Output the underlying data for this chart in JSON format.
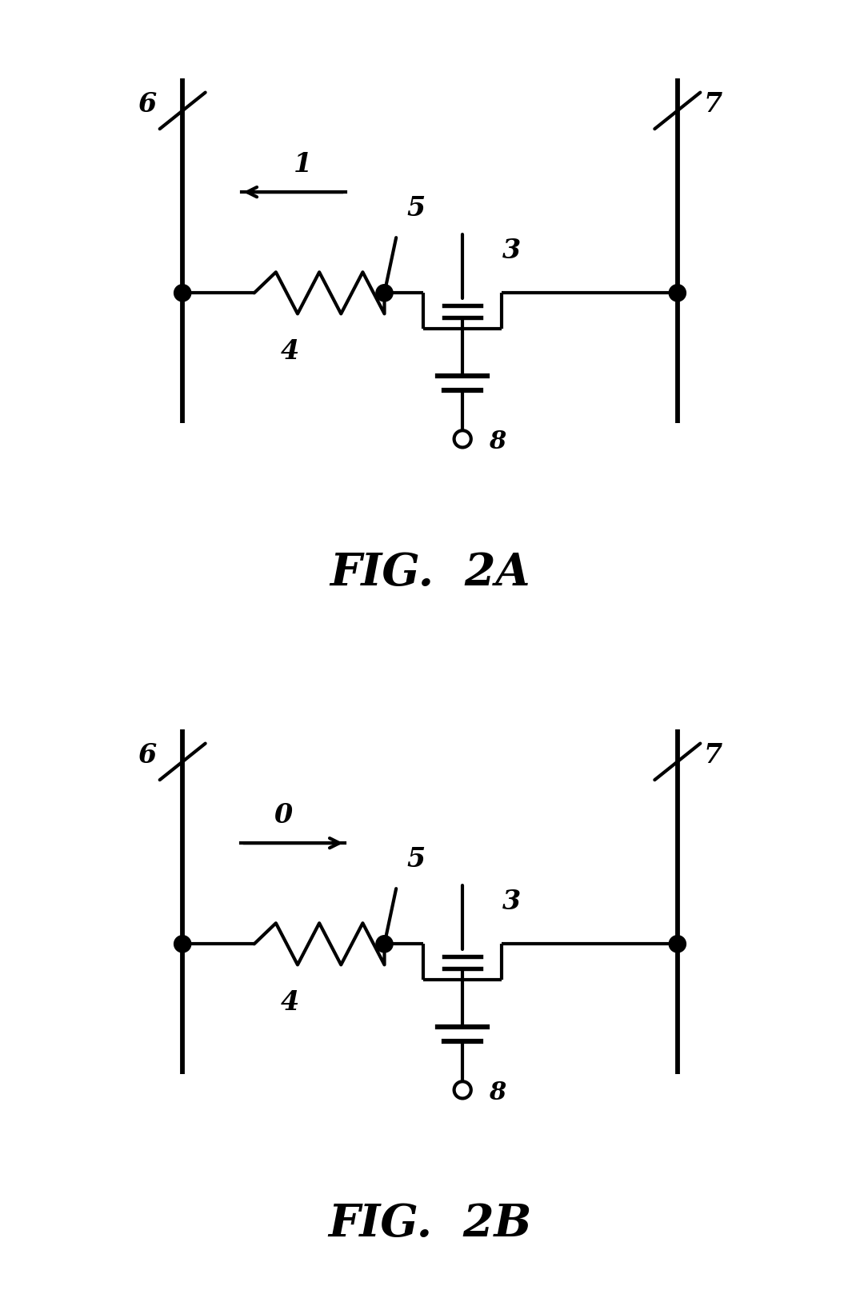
{
  "fig_width": 10.75,
  "fig_height": 16.28,
  "bg_color": "#ffffff",
  "line_color": "#000000",
  "line_width": 3.0,
  "fig2a_title": "FIG.  2A",
  "fig2b_title": "FIG.  2B",
  "label_fontsize": 24,
  "title_fontsize": 40,
  "diagram_2a": {
    "arrow_dir": "left",
    "arrow_label": "1"
  },
  "diagram_2b": {
    "arrow_dir": "right",
    "arrow_label": "0"
  }
}
